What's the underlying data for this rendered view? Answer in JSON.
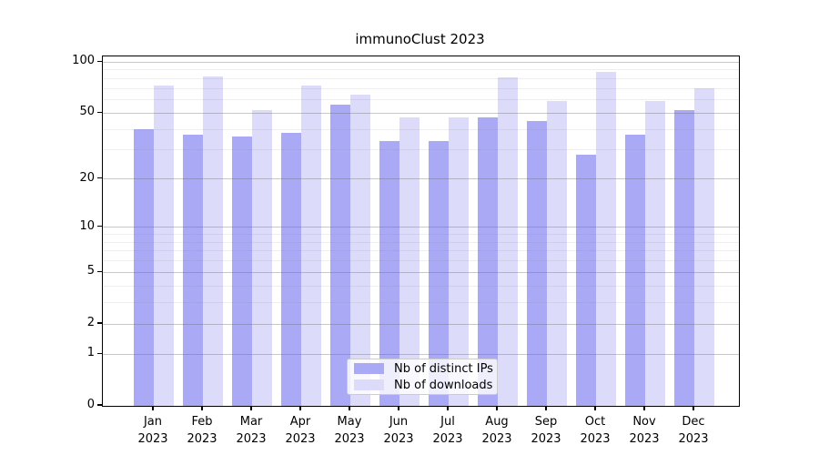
{
  "title": "immunoClust 2023",
  "chart_data": {
    "type": "bar",
    "title": "immunoClust 2023",
    "categories": [
      "Jan",
      "Feb",
      "Mar",
      "Apr",
      "May",
      "Jun",
      "Jul",
      "Aug",
      "Sep",
      "Oct",
      "Nov",
      "Dec"
    ],
    "year_label": "2023",
    "series": [
      {
        "name": "Nb of distinct IPs",
        "color": "#a9a9f6",
        "values": [
          40,
          37,
          36,
          38,
          56,
          34,
          34,
          47,
          45,
          28,
          37,
          52
        ]
      },
      {
        "name": "Nb of downloads",
        "color": "#dcdcfa",
        "values": [
          73,
          82,
          52,
          73,
          64,
          47,
          47,
          81,
          59,
          88,
          59,
          70
        ]
      }
    ],
    "yscale": "log1p",
    "ylim": [
      0,
      108
    ],
    "y_major_ticks": [
      0,
      1,
      2,
      5,
      10,
      20,
      50,
      100
    ],
    "y_minor_gridlines": [
      3,
      4,
      6,
      7,
      8,
      9,
      30,
      40,
      60,
      70,
      80,
      90
    ],
    "grid": true,
    "legend_position": "lower center",
    "axis_color": "#000000",
    "background_color": "#ffffff"
  }
}
